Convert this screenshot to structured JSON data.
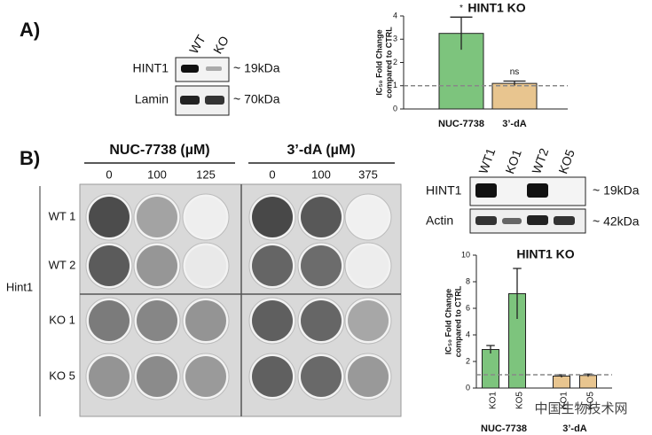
{
  "panel_labels": [
    "A)",
    "B)"
  ],
  "blot_a": {
    "lanes": [
      "WT",
      "KO"
    ],
    "rows": [
      "HINT1",
      "Lamin"
    ],
    "sizes": [
      "~ 19kDa",
      "~ 70kDa"
    ]
  },
  "plates": {
    "treatments": [
      {
        "name": "NUC-7738 (µM)",
        "doses": [
          "0",
          "100",
          "125"
        ]
      },
      {
        "name": "3’-dA (µM)",
        "doses": [
          "0",
          "100",
          "375"
        ]
      }
    ],
    "rows": [
      "WT 1",
      "WT 2",
      "KO 1",
      "KO 5"
    ],
    "group": "Hint1"
  },
  "blot_b": {
    "lanes": [
      "WT1",
      "KO1",
      "WT2",
      "KO5"
    ],
    "rows": [
      "HINT1",
      "Actin"
    ],
    "sizes": [
      "~ 19kDa",
      "~ 42kDa"
    ]
  },
  "watermark": "中国生物技术网",
  "chart_data": [
    {
      "type": "bar",
      "title": "HINT1 KO",
      "ylabel": [
        "IC₅₀ Fold Change",
        "compared to CTRL"
      ],
      "categories": [
        "NUC-7738",
        "3’-dA"
      ],
      "values": [
        3.25,
        1.1
      ],
      "errors": [
        0.7,
        0.1
      ],
      "annotations": [
        "*",
        "ns"
      ],
      "colors": [
        "#7dc47d",
        "#e8c58f"
      ],
      "ylim": [
        0,
        4
      ],
      "yticks": [
        0,
        1,
        2,
        3,
        4
      ],
      "reference_line": 1
    },
    {
      "type": "bar",
      "title": "HINT1 KO",
      "ylabel": [
        "IC₅₀ Fold Change",
        "compared to CTRL"
      ],
      "categories": [
        "KO1",
        "KO5",
        "KO1",
        "KO5"
      ],
      "groups": [
        "NUC-7738",
        "3’-dA"
      ],
      "values": [
        2.9,
        7.1,
        0.9,
        0.95
      ],
      "errors": [
        0.3,
        1.9,
        0.1,
        0.1
      ],
      "colors": [
        "#7dc47d",
        "#7dc47d",
        "#e8c58f",
        "#e8c58f"
      ],
      "ylim": [
        0,
        10
      ],
      "yticks": [
        0,
        2,
        4,
        6,
        8,
        10
      ],
      "reference_line": 1
    }
  ]
}
